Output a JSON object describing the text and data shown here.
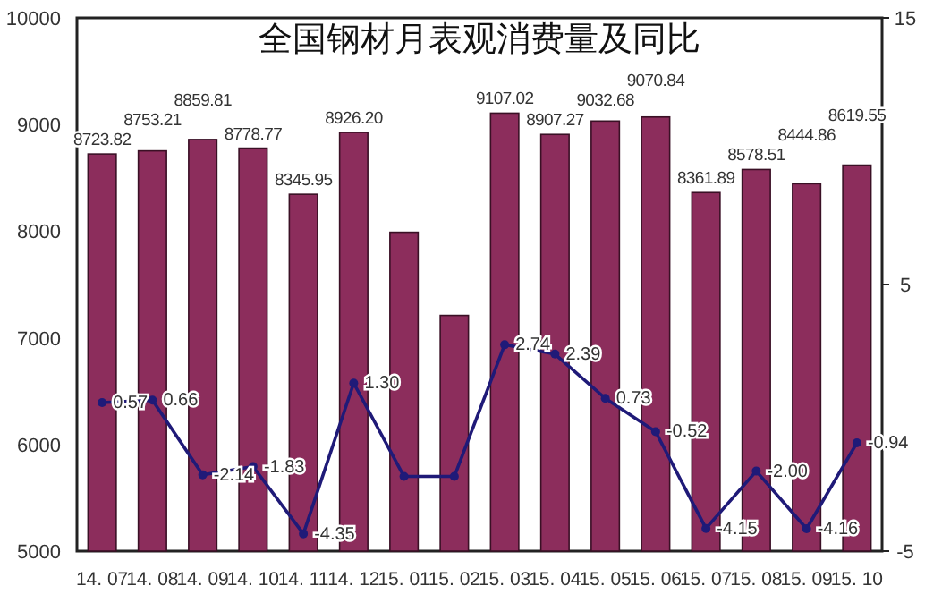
{
  "chart_data": {
    "type": "bar",
    "title": "全国钢材月表观消费量及同比",
    "categories": [
      "14. 07",
      "14. 08",
      "14. 09",
      "14. 10",
      "14. 11",
      "14. 12",
      "15. 01",
      "15. 02",
      "15. 03",
      "15. 04",
      "15. 05",
      "15. 06",
      "15. 07",
      "15. 08",
      "15. 09",
      "15. 10"
    ],
    "series": [
      {
        "color": "#8c2d5c",
        "values": [
          8723.82,
          8753.21,
          8859.81,
          8778.77,
          8345.95,
          8926.2,
          7990,
          7210,
          9107.02,
          8907.27,
          9032.68,
          9070.84,
          8361.89,
          8578.51,
          8444.86,
          8619.55
        ],
        "value_labels": [
          "8723.82",
          "8753.21",
          "8859.81",
          "8778.77",
          "8345.95",
          "8926.20",
          null,
          null,
          "9107.02",
          "8907.27",
          "9032.68",
          "9070.84",
          "8361.89",
          "8578.51",
          "8444.86",
          "8619.55"
        ]
      },
      {
        "type": "line",
        "axis": "y2",
        "color": "#1f1a78",
        "marker": "circle",
        "values": [
          0.57,
          0.66,
          -2.14,
          -1.83,
          -4.35,
          1.3,
          -2.2,
          -2.2,
          2.74,
          2.39,
          0.73,
          -0.52,
          -4.15,
          -2.0,
          -4.16,
          -0.94
        ],
        "value_labels": [
          "0.57",
          "0.66",
          "-2.14",
          "-1.83",
          "-4.35",
          "1.30",
          null,
          null,
          "2.74",
          "2.39",
          "0.73",
          "-0.52",
          "-4.15",
          "-2.00",
          "-4.16",
          "-0.94"
        ]
      }
    ],
    "ylim": [
      5000,
      10000
    ],
    "yticks": [
      5000,
      6000,
      7000,
      8000,
      9000,
      10000
    ],
    "y2lim": [
      -5,
      15
    ],
    "y2ticks": [
      -5,
      5,
      15
    ]
  }
}
